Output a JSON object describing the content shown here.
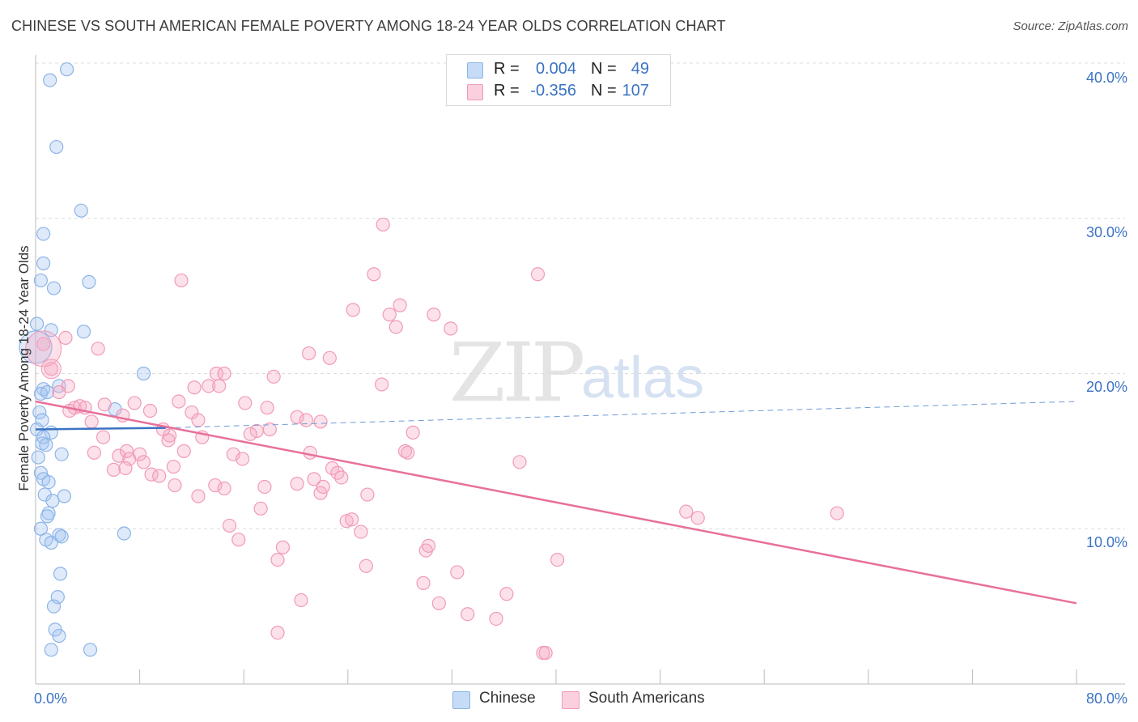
{
  "title": "CHINESE VS SOUTH AMERICAN FEMALE POVERTY AMONG 18-24 YEAR OLDS CORRELATION CHART",
  "source": "Source: ZipAtlas.com",
  "watermark": {
    "zip": "ZIP",
    "atlas": "atlas"
  },
  "stats": [
    {
      "r_label": "R =",
      "r_value": "0.004",
      "n_label": "N =",
      "n_value": "49",
      "color": "#8db4e8",
      "fill": "#c6dbf5"
    },
    {
      "r_label": "R =",
      "r_value": "-0.356",
      "n_label": "N =",
      "n_value": "107",
      "color": "#f19ab8",
      "fill": "#fbd0de"
    }
  ],
  "legend": [
    {
      "label": "Chinese",
      "color": "#8db4e8",
      "fill": "#c6dbf5"
    },
    {
      "label": "South Americans",
      "color": "#f19ab8",
      "fill": "#fbd0de"
    }
  ],
  "x_ticks": {
    "min_label": "0.0%",
    "max_label": "80.0%"
  },
  "y_ticks": [
    "10.0%",
    "20.0%",
    "30.0%",
    "40.0%"
  ],
  "chart_data": {
    "type": "scatter",
    "title": "CHINESE VS SOUTH AMERICAN FEMALE POVERTY AMONG 18-24 YEAR OLDS CORRELATION CHART",
    "xlabel": "",
    "ylabel": "Female Poverty Among 18-24 Year Olds",
    "xlim": [
      0,
      80
    ],
    "ylim": [
      0,
      41
    ],
    "grid": true,
    "series": [
      {
        "name": "Chinese",
        "color": "#3b73c4",
        "points": [
          [
            1.1,
            38.9
          ],
          [
            2.4,
            39.6
          ],
          [
            1.6,
            34.6
          ],
          [
            3.5,
            30.5
          ],
          [
            0.6,
            29.0
          ],
          [
            0.6,
            27.1
          ],
          [
            4.1,
            25.9
          ],
          [
            0.4,
            26.0
          ],
          [
            1.4,
            25.5
          ],
          [
            0.1,
            23.2
          ],
          [
            1.2,
            22.8
          ],
          [
            3.7,
            22.7
          ],
          [
            8.3,
            20.0
          ],
          [
            0.6,
            19.0
          ],
          [
            1.8,
            19.2
          ],
          [
            0.4,
            18.7
          ],
          [
            0.9,
            18.8
          ],
          [
            6.1,
            17.7
          ],
          [
            0.3,
            17.5
          ],
          [
            0.5,
            17.0
          ],
          [
            0.1,
            16.4
          ],
          [
            1.2,
            16.2
          ],
          [
            0.6,
            15.9
          ],
          [
            0.5,
            15.5
          ],
          [
            0.8,
            15.4
          ],
          [
            2.0,
            14.8
          ],
          [
            0.2,
            14.6
          ],
          [
            0.4,
            13.6
          ],
          [
            0.6,
            13.2
          ],
          [
            1.0,
            13.0
          ],
          [
            2.2,
            12.1
          ],
          [
            0.7,
            12.2
          ],
          [
            1.3,
            11.8
          ],
          [
            1.0,
            11.0
          ],
          [
            0.9,
            10.8
          ],
          [
            0.4,
            10.0
          ],
          [
            6.8,
            9.7
          ],
          [
            1.8,
            9.6
          ],
          [
            2.0,
            9.5
          ],
          [
            0.8,
            9.3
          ],
          [
            1.2,
            9.1
          ],
          [
            1.9,
            7.1
          ],
          [
            1.7,
            5.6
          ],
          [
            1.4,
            5.0
          ],
          [
            1.5,
            3.5
          ],
          [
            1.8,
            3.1
          ],
          [
            1.2,
            2.2
          ],
          [
            4.2,
            2.2
          ],
          [
            0.0,
            21.7
          ]
        ],
        "trend": {
          "x0": 0,
          "y0": 16.4,
          "x1": 10,
          "y1": 16.5,
          "dash_to_x": 80,
          "dash_to_y": 18.2
        }
      },
      {
        "name": "South Americans",
        "color": "#e8709c",
        "points": [
          [
            0.6,
            21.9
          ],
          [
            1.2,
            20.3
          ],
          [
            2.3,
            22.3
          ],
          [
            4.8,
            21.6
          ],
          [
            2.5,
            19.2
          ],
          [
            1.8,
            18.8
          ],
          [
            3.0,
            17.8
          ],
          [
            3.4,
            17.9
          ],
          [
            3.8,
            17.8
          ],
          [
            2.6,
            17.6
          ],
          [
            4.3,
            16.9
          ],
          [
            5.3,
            18.0
          ],
          [
            6.7,
            17.3
          ],
          [
            7.6,
            18.1
          ],
          [
            8.8,
            17.6
          ],
          [
            5.2,
            15.9
          ],
          [
            4.5,
            14.9
          ],
          [
            6.4,
            14.7
          ],
          [
            7.0,
            15.0
          ],
          [
            7.2,
            14.5
          ],
          [
            6.0,
            13.8
          ],
          [
            6.9,
            13.9
          ],
          [
            8.0,
            14.8
          ],
          [
            8.3,
            14.3
          ],
          [
            8.9,
            13.5
          ],
          [
            9.5,
            13.4
          ],
          [
            10.3,
            16.0
          ],
          [
            10.2,
            15.7
          ],
          [
            9.8,
            16.4
          ],
          [
            10.6,
            14.0
          ],
          [
            10.7,
            12.8
          ],
          [
            11.0,
            18.2
          ],
          [
            12.0,
            17.5
          ],
          [
            11.4,
            15.0
          ],
          [
            11.2,
            26.0
          ],
          [
            12.5,
            17.0
          ],
          [
            12.2,
            19.1
          ],
          [
            13.3,
            19.2
          ],
          [
            13.9,
            20.0
          ],
          [
            14.1,
            19.2
          ],
          [
            12.5,
            12.1
          ],
          [
            13.8,
            12.8
          ],
          [
            14.5,
            12.6
          ],
          [
            15.2,
            14.8
          ],
          [
            15.9,
            14.5
          ],
          [
            14.9,
            10.2
          ],
          [
            15.6,
            9.3
          ],
          [
            16.1,
            18.1
          ],
          [
            17.0,
            16.3
          ],
          [
            16.5,
            16.1
          ],
          [
            17.6,
            12.7
          ],
          [
            17.3,
            11.3
          ],
          [
            17.8,
            17.8
          ],
          [
            18.0,
            16.4
          ],
          [
            18.3,
            19.8
          ],
          [
            18.6,
            8.0
          ],
          [
            19.0,
            8.8
          ],
          [
            20.1,
            12.9
          ],
          [
            20.1,
            17.2
          ],
          [
            21.0,
            21.3
          ],
          [
            21.4,
            13.2
          ],
          [
            21.1,
            14.9
          ],
          [
            20.8,
            17.0
          ],
          [
            21.9,
            12.3
          ],
          [
            21.9,
            16.9
          ],
          [
            22.1,
            12.7
          ],
          [
            22.6,
            21.0
          ],
          [
            22.8,
            13.9
          ],
          [
            23.2,
            13.6
          ],
          [
            23.5,
            13.3
          ],
          [
            23.9,
            10.5
          ],
          [
            24.3,
            10.6
          ],
          [
            24.4,
            24.1
          ],
          [
            25.0,
            9.8
          ],
          [
            26.0,
            26.4
          ],
          [
            25.5,
            12.2
          ],
          [
            26.6,
            19.3
          ],
          [
            26.7,
            29.6
          ],
          [
            27.2,
            23.8
          ],
          [
            27.7,
            23.0
          ],
          [
            28.0,
            24.4
          ],
          [
            28.4,
            15.0
          ],
          [
            28.6,
            14.9
          ],
          [
            29.0,
            16.2
          ],
          [
            29.8,
            6.5
          ],
          [
            30.0,
            8.6
          ],
          [
            30.2,
            8.9
          ],
          [
            30.6,
            23.8
          ],
          [
            31.0,
            5.2
          ],
          [
            31.9,
            22.9
          ],
          [
            32.4,
            7.2
          ],
          [
            33.2,
            4.5
          ],
          [
            35.4,
            4.2
          ],
          [
            36.2,
            5.8
          ],
          [
            37.2,
            14.3
          ],
          [
            38.6,
            26.4
          ],
          [
            39.0,
            2.0
          ],
          [
            39.2,
            2.0
          ],
          [
            40.1,
            8.0
          ],
          [
            50.0,
            11.1
          ],
          [
            50.9,
            10.7
          ],
          [
            61.6,
            11.0
          ],
          [
            25.4,
            7.6
          ],
          [
            14.5,
            20.0
          ],
          [
            12.8,
            15.9
          ],
          [
            18.6,
            3.3
          ],
          [
            20.4,
            5.4
          ]
        ],
        "trend": {
          "x0": 0,
          "y0": 18.2,
          "x1": 80,
          "y1": 5.2
        }
      }
    ]
  }
}
